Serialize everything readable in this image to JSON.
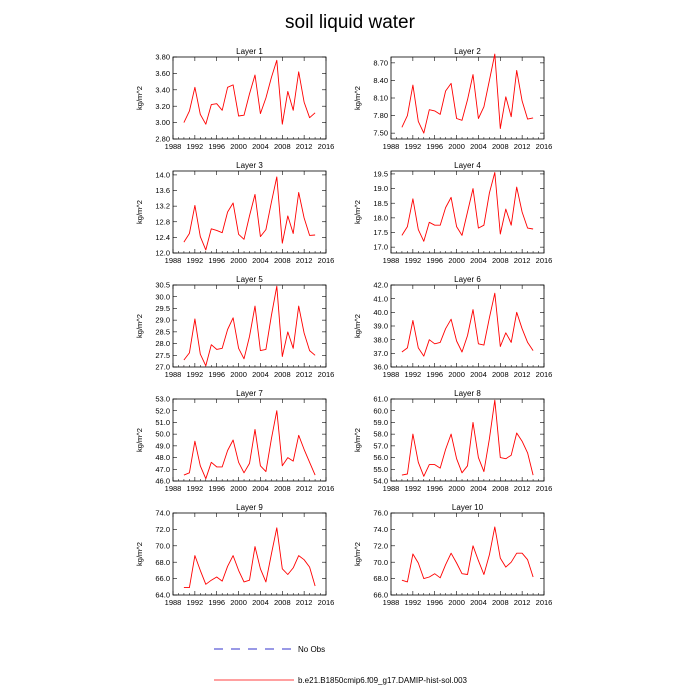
{
  "figure": {
    "title": "soil liquid water"
  },
  "legend": {
    "obs_label": "No Obs",
    "model_label": "b.e21.B1850cmip6.f09_g17.DAMIP-hist-sol.003",
    "obs_color": "#3333cc",
    "model_color": "#ff0000"
  },
  "chart_data": [
    {
      "type": "line",
      "title": "Layer 1",
      "ylabel": "kg/m^2",
      "xlim": [
        1988,
        2016
      ],
      "xticks": [
        1988,
        1992,
        1996,
        2000,
        2004,
        2008,
        2012,
        2016
      ],
      "ylim": [
        2.8,
        3.8
      ],
      "yticks": [
        "2.80",
        "3.00",
        "3.20",
        "3.40",
        "3.60",
        "3.80"
      ],
      "series": [
        {
          "x": [
            1990,
            1991,
            1992,
            1993,
            1994,
            1995,
            1996,
            1997,
            1998,
            1999,
            2000,
            2001,
            2002,
            2003,
            2004,
            2005,
            2006,
            2007,
            2008,
            2009,
            2010,
            2011,
            2012,
            2013,
            2014
          ],
          "values": [
            3.0,
            3.14,
            3.43,
            3.1,
            2.98,
            3.22,
            3.23,
            3.15,
            3.43,
            3.46,
            3.08,
            3.09,
            3.35,
            3.58,
            3.11,
            3.3,
            3.55,
            3.76,
            2.98,
            3.38,
            3.15,
            3.62,
            3.25,
            3.06,
            3.12
          ]
        }
      ]
    },
    {
      "type": "line",
      "title": "Layer 2",
      "ylabel": "kg/m^2",
      "xlim": [
        1988,
        2016
      ],
      "xticks": [
        1988,
        1992,
        1996,
        2000,
        2004,
        2008,
        2012,
        2016
      ],
      "ylim": [
        7.4,
        8.8
      ],
      "yticks": [
        "7.50",
        "7.80",
        "8.10",
        "8.40",
        "8.70"
      ],
      "series": [
        {
          "x": [
            1990,
            1991,
            1992,
            1993,
            1994,
            1995,
            1996,
            1997,
            1998,
            1999,
            2000,
            2001,
            2002,
            2003,
            2004,
            2005,
            2006,
            2007,
            2008,
            2009,
            2010,
            2011,
            2012,
            2013,
            2014
          ],
          "values": [
            7.6,
            7.8,
            8.32,
            7.7,
            7.5,
            7.9,
            7.88,
            7.82,
            8.22,
            8.35,
            7.75,
            7.72,
            8.07,
            8.5,
            7.75,
            7.95,
            8.4,
            8.85,
            7.58,
            8.12,
            7.78,
            8.57,
            8.05,
            7.74,
            7.76
          ]
        }
      ]
    },
    {
      "type": "line",
      "title": "Layer 3",
      "ylabel": "kg/m^2",
      "xlim": [
        1988,
        2016
      ],
      "xticks": [
        1988,
        1992,
        1996,
        2000,
        2004,
        2008,
        2012,
        2016
      ],
      "ylim": [
        12.0,
        14.1
      ],
      "yticks": [
        "12.0",
        "12.4",
        "12.8",
        "13.2",
        "13.6",
        "14.0"
      ],
      "series": [
        {
          "x": [
            1990,
            1991,
            1992,
            1993,
            1994,
            1995,
            1996,
            1997,
            1998,
            1999,
            2000,
            2001,
            2002,
            2003,
            2004,
            2005,
            2006,
            2007,
            2008,
            2009,
            2010,
            2011,
            2012,
            2013,
            2014
          ],
          "values": [
            12.28,
            12.5,
            13.22,
            12.42,
            12.08,
            12.62,
            12.58,
            12.52,
            13.05,
            13.28,
            12.48,
            12.35,
            12.95,
            13.5,
            12.42,
            12.6,
            13.3,
            13.95,
            12.25,
            12.95,
            12.5,
            13.55,
            12.9,
            12.45,
            12.46
          ]
        }
      ]
    },
    {
      "type": "line",
      "title": "Layer 4",
      "ylabel": "kg/m^2",
      "xlim": [
        1988,
        2016
      ],
      "xticks": [
        1988,
        1992,
        1996,
        2000,
        2004,
        2008,
        2012,
        2016
      ],
      "ylim": [
        16.8,
        19.6
      ],
      "yticks": [
        "17.0",
        "17.5",
        "18.0",
        "18.5",
        "19.0",
        "19.5"
      ],
      "series": [
        {
          "x": [
            1990,
            1991,
            1992,
            1993,
            1994,
            1995,
            1996,
            1997,
            1998,
            1999,
            2000,
            2001,
            2002,
            2003,
            2004,
            2005,
            2006,
            2007,
            2008,
            2009,
            2010,
            2011,
            2012,
            2013,
            2014
          ],
          "values": [
            17.4,
            17.7,
            18.65,
            17.6,
            17.2,
            17.85,
            17.75,
            17.75,
            18.35,
            18.7,
            17.7,
            17.4,
            18.2,
            19.0,
            17.65,
            17.75,
            18.85,
            19.55,
            17.45,
            18.3,
            17.75,
            19.05,
            18.2,
            17.65,
            17.62
          ]
        }
      ]
    },
    {
      "type": "line",
      "title": "Layer 5",
      "ylabel": "kg/m^2",
      "xlim": [
        1988,
        2016
      ],
      "xticks": [
        1988,
        1992,
        1996,
        2000,
        2004,
        2008,
        2012,
        2016
      ],
      "ylim": [
        27.0,
        30.5
      ],
      "yticks": [
        "27.0",
        "27.5",
        "28.0",
        "28.5",
        "29.0",
        "29.5",
        "30.0",
        "30.5"
      ],
      "series": [
        {
          "x": [
            1990,
            1991,
            1992,
            1993,
            1994,
            1995,
            1996,
            1997,
            1998,
            1999,
            2000,
            2001,
            2002,
            2003,
            2004,
            2005,
            2006,
            2007,
            2008,
            2009,
            2010,
            2011,
            2012,
            2013,
            2014
          ],
          "values": [
            27.3,
            27.6,
            29.05,
            27.55,
            27.05,
            27.95,
            27.75,
            27.8,
            28.6,
            29.1,
            27.8,
            27.35,
            28.3,
            29.6,
            27.7,
            27.75,
            29.2,
            30.45,
            27.45,
            28.5,
            27.8,
            29.6,
            28.45,
            27.7,
            27.5
          ]
        }
      ]
    },
    {
      "type": "line",
      "title": "Layer 6",
      "ylabel": "kg/m^2",
      "xlim": [
        1988,
        2016
      ],
      "xticks": [
        1988,
        1992,
        1996,
        2000,
        2004,
        2008,
        2012,
        2016
      ],
      "ylim": [
        36.0,
        42.0
      ],
      "yticks": [
        "36.0",
        "37.0",
        "38.0",
        "39.0",
        "40.0",
        "41.0",
        "42.0"
      ],
      "series": [
        {
          "x": [
            1990,
            1991,
            1992,
            1993,
            1994,
            1995,
            1996,
            1997,
            1998,
            1999,
            2000,
            2001,
            2002,
            2003,
            2004,
            2005,
            2006,
            2007,
            2008,
            2009,
            2010,
            2011,
            2012,
            2013,
            2014
          ],
          "values": [
            37.1,
            37.4,
            39.4,
            37.4,
            36.8,
            38.0,
            37.7,
            37.8,
            38.8,
            39.5,
            37.9,
            37.1,
            38.3,
            40.2,
            37.7,
            37.6,
            39.6,
            41.4,
            37.5,
            38.5,
            37.8,
            40.0,
            38.8,
            37.8,
            37.2
          ]
        }
      ]
    },
    {
      "type": "line",
      "title": "Layer 7",
      "ylabel": "kg/m^2",
      "xlim": [
        1988,
        2016
      ],
      "xticks": [
        1988,
        1992,
        1996,
        2000,
        2004,
        2008,
        2012,
        2016
      ],
      "ylim": [
        46.0,
        53.0
      ],
      "yticks": [
        "46.0",
        "47.0",
        "48.0",
        "49.0",
        "50.0",
        "51.0",
        "52.0",
        "53.0"
      ],
      "series": [
        {
          "x": [
            1990,
            1991,
            1992,
            1993,
            1994,
            1995,
            1996,
            1997,
            1998,
            1999,
            2000,
            2001,
            2002,
            2003,
            2004,
            2005,
            2006,
            2007,
            2008,
            2009,
            2010,
            2011,
            2012,
            2013,
            2014
          ],
          "values": [
            46.5,
            46.7,
            49.4,
            47.3,
            46.2,
            47.6,
            47.2,
            47.2,
            48.6,
            49.5,
            47.6,
            46.7,
            47.5,
            50.4,
            47.3,
            46.8,
            49.6,
            52.0,
            47.3,
            48.0,
            47.7,
            49.9,
            48.7,
            47.6,
            46.5
          ]
        }
      ]
    },
    {
      "type": "line",
      "title": "Layer 8",
      "ylabel": "kg/m^2",
      "xlim": [
        1988,
        2016
      ],
      "xticks": [
        1988,
        1992,
        1996,
        2000,
        2004,
        2008,
        2012,
        2016
      ],
      "ylim": [
        54.0,
        61.0
      ],
      "yticks": [
        "54.0",
        "55.0",
        "56.0",
        "57.0",
        "58.0",
        "59.0",
        "60.0",
        "61.0"
      ],
      "series": [
        {
          "x": [
            1990,
            1991,
            1992,
            1993,
            1994,
            1995,
            1996,
            1997,
            1998,
            1999,
            2000,
            2001,
            2002,
            2003,
            2004,
            2005,
            2006,
            2007,
            2008,
            2009,
            2010,
            2011,
            2012,
            2013,
            2014
          ],
          "values": [
            54.5,
            54.6,
            58.0,
            55.6,
            54.4,
            55.4,
            55.4,
            55.1,
            56.7,
            58.0,
            55.9,
            54.7,
            55.3,
            59.0,
            56.0,
            54.8,
            57.6,
            60.9,
            56.0,
            55.9,
            56.2,
            58.1,
            57.4,
            56.4,
            54.5
          ]
        }
      ]
    },
    {
      "type": "line",
      "title": "Layer 9",
      "ylabel": "kg/m^2",
      "xlim": [
        1988,
        2016
      ],
      "xticks": [
        1988,
        1992,
        1996,
        2000,
        2004,
        2008,
        2012,
        2016
      ],
      "ylim": [
        64.0,
        74.0
      ],
      "yticks": [
        "64.0",
        "66.0",
        "68.0",
        "70.0",
        "72.0",
        "74.0"
      ],
      "series": [
        {
          "x": [
            1990,
            1991,
            1992,
            1993,
            1994,
            1995,
            1996,
            1997,
            1998,
            1999,
            2000,
            2001,
            2002,
            2003,
            2004,
            2005,
            2006,
            2007,
            2008,
            2009,
            2010,
            2011,
            2012,
            2013,
            2014
          ],
          "values": [
            64.9,
            64.9,
            68.8,
            67.0,
            65.3,
            65.8,
            66.2,
            65.7,
            67.5,
            68.8,
            67.0,
            65.6,
            65.8,
            69.9,
            67.2,
            65.6,
            69.0,
            72.2,
            67.2,
            66.5,
            67.3,
            68.8,
            68.3,
            67.4,
            65.1
          ]
        }
      ]
    },
    {
      "type": "line",
      "title": "Layer 10",
      "ylabel": "kg/m^2",
      "xlim": [
        1988,
        2016
      ],
      "xticks": [
        1988,
        1992,
        1996,
        2000,
        2004,
        2008,
        2012,
        2016
      ],
      "ylim": [
        66.0,
        76.0
      ],
      "yticks": [
        "66.0",
        "68.0",
        "70.0",
        "72.0",
        "74.0",
        "76.0"
      ],
      "series": [
        {
          "x": [
            1990,
            1991,
            1992,
            1993,
            1994,
            1995,
            1996,
            1997,
            1998,
            1999,
            2000,
            2001,
            2002,
            2003,
            2004,
            2005,
            2006,
            2007,
            2008,
            2009,
            2010,
            2011,
            2012,
            2013,
            2014
          ],
          "values": [
            67.8,
            67.6,
            71.0,
            69.9,
            68.0,
            68.2,
            68.6,
            68.1,
            69.7,
            71.1,
            69.9,
            68.6,
            68.5,
            72.0,
            70.2,
            68.5,
            70.9,
            74.3,
            70.5,
            69.4,
            70.0,
            71.1,
            71.1,
            70.3,
            68.2
          ]
        }
      ]
    }
  ]
}
